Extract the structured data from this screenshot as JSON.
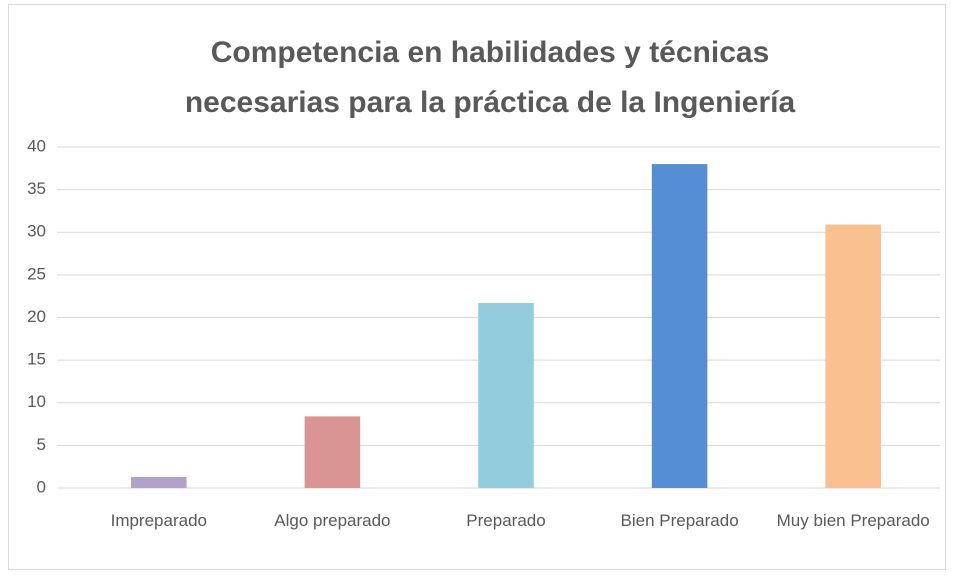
{
  "chart_data": {
    "type": "bar",
    "title": "Competencia en habilidades y técnicas necesarias para la práctica de la Ingeniería",
    "categories": [
      "Impreparado",
      "Algo preparado",
      "Preparado",
      "Bien Preparado",
      "Muy bien Preparado"
    ],
    "values": [
      1.3,
      8.4,
      21.7,
      38.0,
      30.9
    ],
    "colors": [
      "#b3a2c7",
      "#d99594",
      "#93cddd",
      "#558ed5",
      "#fac090"
    ],
    "ylim": [
      0,
      40
    ],
    "yticks": [
      0,
      5,
      10,
      15,
      20,
      25,
      30,
      35,
      40
    ],
    "grid": true
  }
}
